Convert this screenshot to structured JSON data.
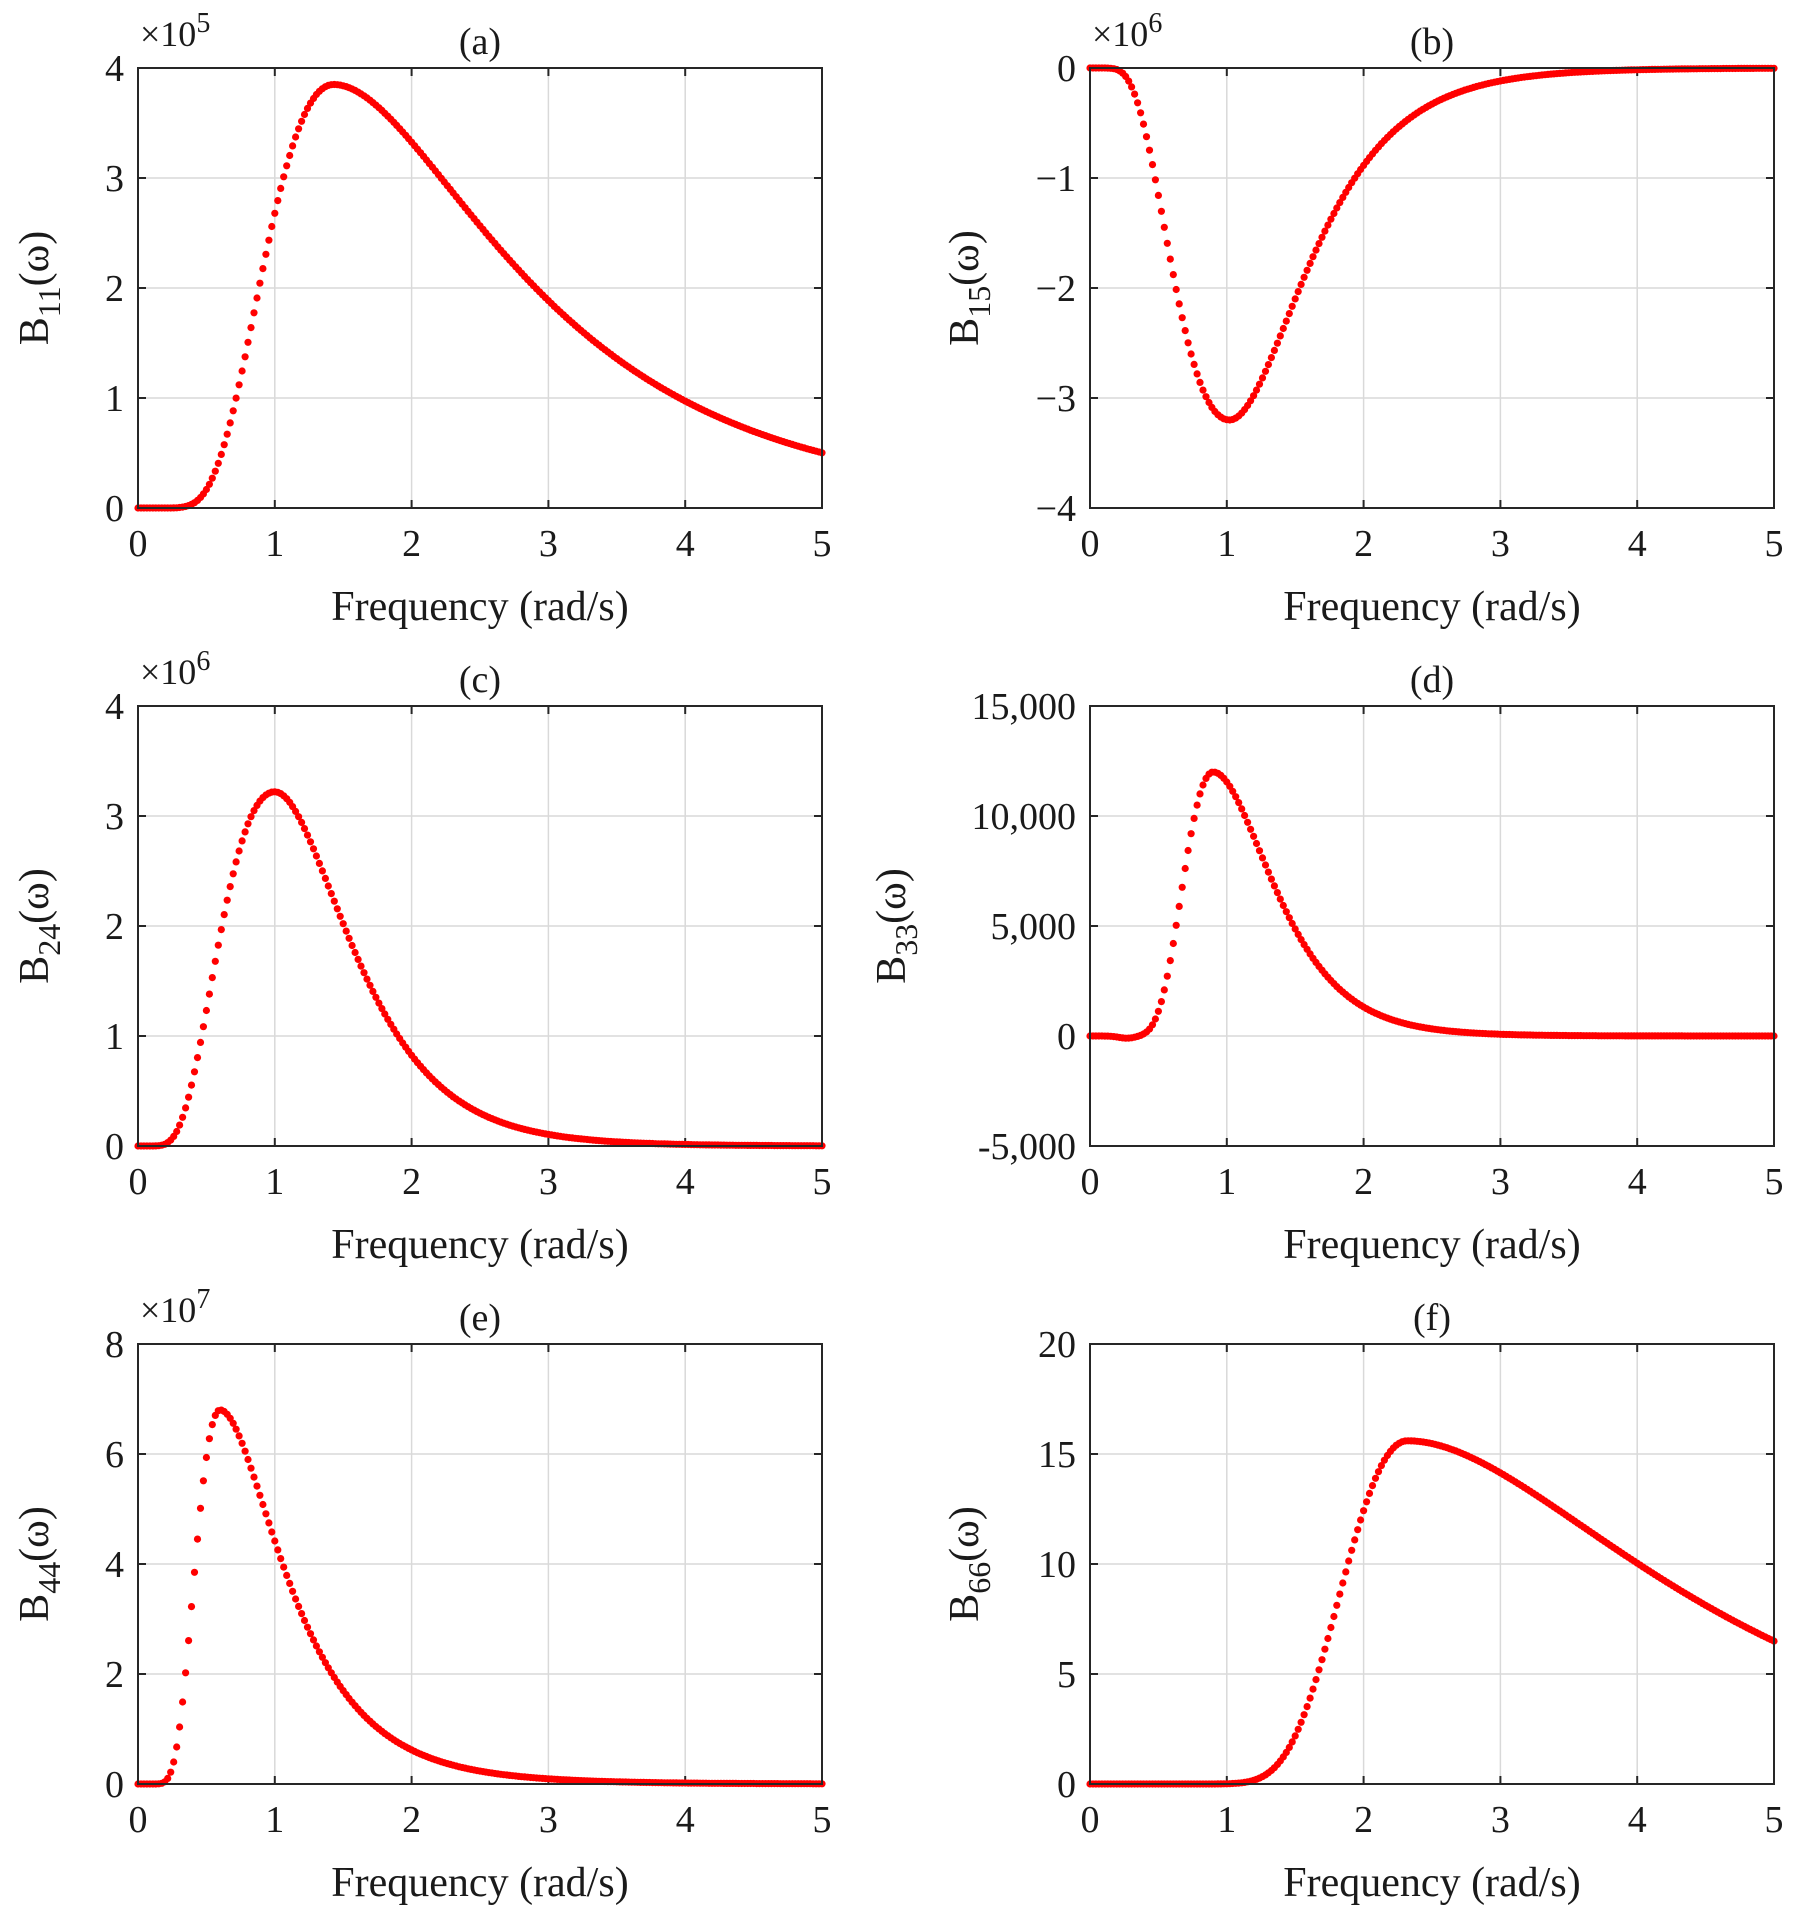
{
  "figure": {
    "accent_color": "#ff0000"
  },
  "chart_data": [
    {
      "id": "a",
      "type": "scatter",
      "title": "(a)",
      "xlabel": "Frequency (rad/s)",
      "ylabel_main": "B",
      "ylabel_sub": "11",
      "ylabel_tail": "(ω)",
      "exponent": "5",
      "xlim": [
        0,
        5
      ],
      "ylim": [
        0,
        4
      ],
      "xticks": [
        0,
        1,
        2,
        3,
        4,
        5
      ],
      "xtick_labels": [
        "0",
        "1",
        "2",
        "3",
        "4",
        "5"
      ],
      "yticks": [
        0,
        1,
        2,
        3,
        4
      ],
      "ytick_labels": [
        "0",
        "1",
        "2",
        "3",
        "4"
      ],
      "curve": {
        "kind": "lognormal",
        "peak_x": 1.43,
        "peak_y": 3.85,
        "sigma": 0.42,
        "sigma_after": 0.62
      },
      "n_points": 230,
      "color": "#ff0000"
    },
    {
      "id": "b",
      "type": "scatter",
      "title": "(b)",
      "xlabel": "Frequency (rad/s)",
      "ylabel_main": "B",
      "ylabel_sub": "15",
      "ylabel_tail": "(ω)",
      "exponent": "6",
      "xlim": [
        0,
        5
      ],
      "ylim": [
        -4,
        0
      ],
      "xticks": [
        0,
        1,
        2,
        3,
        4,
        5
      ],
      "xtick_labels": [
        "0",
        "1",
        "2",
        "3",
        "4",
        "5"
      ],
      "yticks": [
        -4,
        -3,
        -2,
        -1,
        0
      ],
      "ytick_labels": [
        "−4",
        "−3",
        "−2",
        "−1",
        "0"
      ],
      "curve": {
        "kind": "lognormal",
        "peak_x": 1.02,
        "peak_y": -3.2,
        "sigma": 0.5,
        "sigma_after": 0.42
      },
      "n_points": 230,
      "color": "#ff0000"
    },
    {
      "id": "c",
      "type": "scatter",
      "title": "(c)",
      "xlabel": "Frequency (rad/s)",
      "ylabel_main": "B",
      "ylabel_sub": "24",
      "ylabel_tail": "(ω)",
      "exponent": "6",
      "xlim": [
        0,
        5
      ],
      "ylim": [
        0,
        4
      ],
      "xticks": [
        0,
        1,
        2,
        3,
        4,
        5
      ],
      "xtick_labels": [
        "0",
        "1",
        "2",
        "3",
        "4",
        "5"
      ],
      "yticks": [
        0,
        1,
        2,
        3,
        4
      ],
      "ytick_labels": [
        "0",
        "1",
        "2",
        "3",
        "4"
      ],
      "curve": {
        "kind": "lognormal",
        "peak_x": 1.0,
        "peak_y": 3.22,
        "sigma": 0.5,
        "sigma_after": 0.42
      },
      "n_points": 230,
      "color": "#ff0000"
    },
    {
      "id": "d",
      "type": "scatter",
      "title": "(d)",
      "xlabel": "Frequency (rad/s)",
      "ylabel_main": "B",
      "ylabel_sub": "33",
      "ylabel_tail": "(ω)",
      "exponent": "",
      "xlim": [
        0,
        5
      ],
      "ylim": [
        -5000,
        15000
      ],
      "xticks": [
        0,
        1,
        2,
        3,
        4,
        5
      ],
      "xtick_labels": [
        "0",
        "1",
        "2",
        "3",
        "4",
        "5"
      ],
      "yticks": [
        -5000,
        0,
        5000,
        10000,
        15000
      ],
      "ytick_labels": [
        "-5,000",
        "0",
        "5,000",
        "10,000",
        "15,000"
      ],
      "curve": {
        "kind": "lognormal",
        "peak_x": 0.9,
        "peak_y": 12000,
        "sigma": 0.27,
        "sigma_after": 0.38,
        "dip_x": 0.27,
        "dip_y": -100
      },
      "n_points": 230,
      "color": "#ff0000"
    },
    {
      "id": "e",
      "type": "scatter",
      "title": "(e)",
      "xlabel": "Frequency (rad/s)",
      "ylabel_main": "B",
      "ylabel_sub": "44",
      "ylabel_tail": "(ω)",
      "exponent": "7",
      "xlim": [
        0,
        5
      ],
      "ylim": [
        0,
        8
      ],
      "xticks": [
        0,
        1,
        2,
        3,
        4,
        5
      ],
      "xtick_labels": [
        "0",
        "1",
        "2",
        "3",
        "4",
        "5"
      ],
      "yticks": [
        0,
        2,
        4,
        6,
        8
      ],
      "ytick_labels": [
        "0",
        "2",
        "4",
        "6",
        "8"
      ],
      "curve": {
        "kind": "lognormal",
        "peak_x": 0.6,
        "peak_y": 6.8,
        "sigma": 0.35,
        "sigma_after": 0.55
      },
      "n_points": 230,
      "color": "#ff0000"
    },
    {
      "id": "f",
      "type": "scatter",
      "title": "(f)",
      "xlabel": "Frequency (rad/s)",
      "ylabel_main": "B",
      "ylabel_sub": "66",
      "ylabel_tail": "(ω)",
      "exponent": "",
      "xlim": [
        0,
        5
      ],
      "ylim": [
        0,
        20
      ],
      "xticks": [
        0,
        1,
        2,
        3,
        4,
        5
      ],
      "xtick_labels": [
        "0",
        "1",
        "2",
        "3",
        "4",
        "5"
      ],
      "yticks": [
        0,
        5,
        10,
        15,
        20
      ],
      "ytick_labels": [
        "0",
        "5",
        "10",
        "15",
        "20"
      ],
      "curve": {
        "kind": "lognormal",
        "peak_x": 2.32,
        "peak_y": 15.6,
        "sigma": 0.22,
        "sigma_after": 0.58
      },
      "n_points": 230,
      "color": "#ff0000"
    }
  ]
}
